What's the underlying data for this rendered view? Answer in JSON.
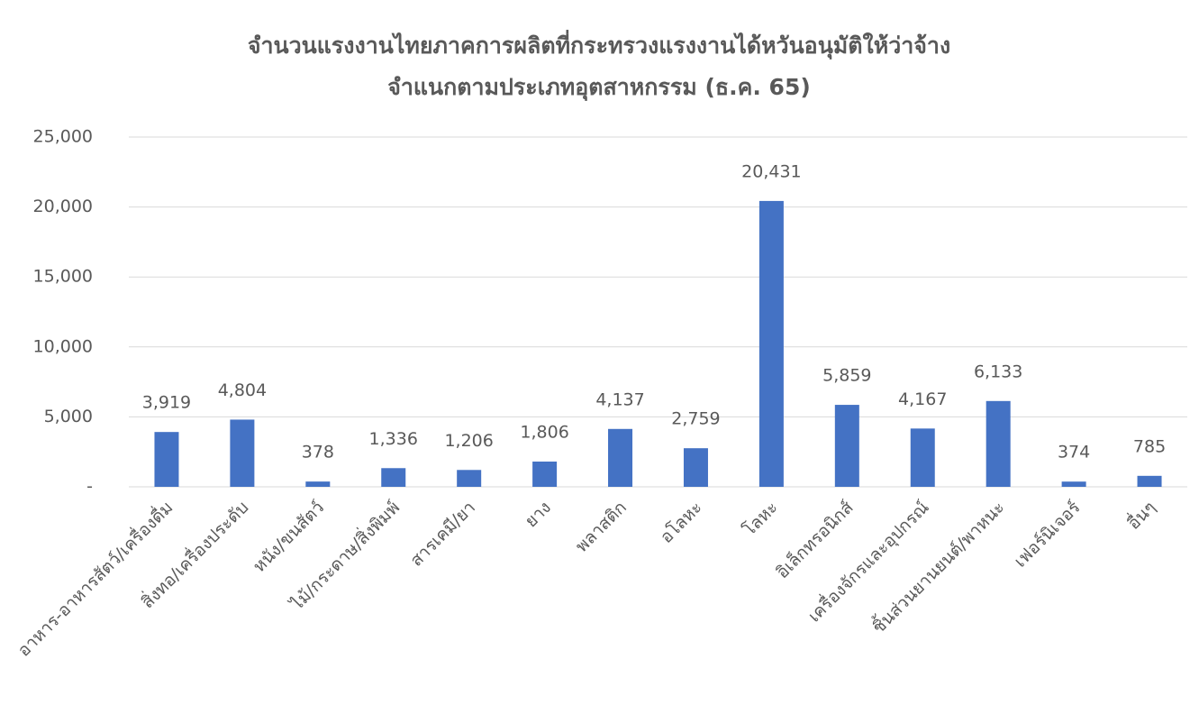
{
  "chart_data": {
    "type": "bar",
    "title": [
      "จำนวนแรงงานไทยภาคการผลิตที่กระทรวงแรงงานได้หวันอนุมัติให้ว่าจ้าง",
      "จำแนกตามประเภทอุตสาหกรรม (ธ.ค. 65)"
    ],
    "categories": [
      "อาหาร-อาหารสัตว์/เครื่องดื่ม",
      "สิ่งทอ/เครื่องประดับ",
      "หนัง/ขนสัตว์",
      "ไม้/กระดาษ/สิ่งพิมพ์",
      "สารเคมี/ยา",
      "ยาง",
      "พลาสติก",
      "อโลหะ",
      "โลหะ",
      "อิเล็กทรอนิกส์",
      "เครื่องจักรและอุปกรณ์",
      "ชิ้นส่วนยานยนต์/พาหนะ",
      "เฟอร์นิเจอร์",
      "อื่นๆ"
    ],
    "values": [
      3919,
      4804,
      378,
      1336,
      1206,
      1806,
      4137,
      2759,
      20431,
      5859,
      4167,
      6133,
      374,
      785
    ],
    "value_labels": [
      "3,919",
      "4,804",
      "378",
      "1,336",
      "1,206",
      "1,806",
      "4,137",
      "2,759",
      "20,431",
      "5,859",
      "4,167",
      "6,133",
      "374",
      "785"
    ],
    "color": "#4472c4",
    "ylim": [
      0,
      25000
    ],
    "yticks": [
      {
        "value": 0,
        "label": "-"
      },
      {
        "value": 5000,
        "label": "5,000"
      },
      {
        "value": 10000,
        "label": "10,000"
      },
      {
        "value": 15000,
        "label": "15,000"
      },
      {
        "value": 20000,
        "label": "20,000"
      },
      {
        "value": 25000,
        "label": "25,000"
      }
    ],
    "grid": true
  }
}
